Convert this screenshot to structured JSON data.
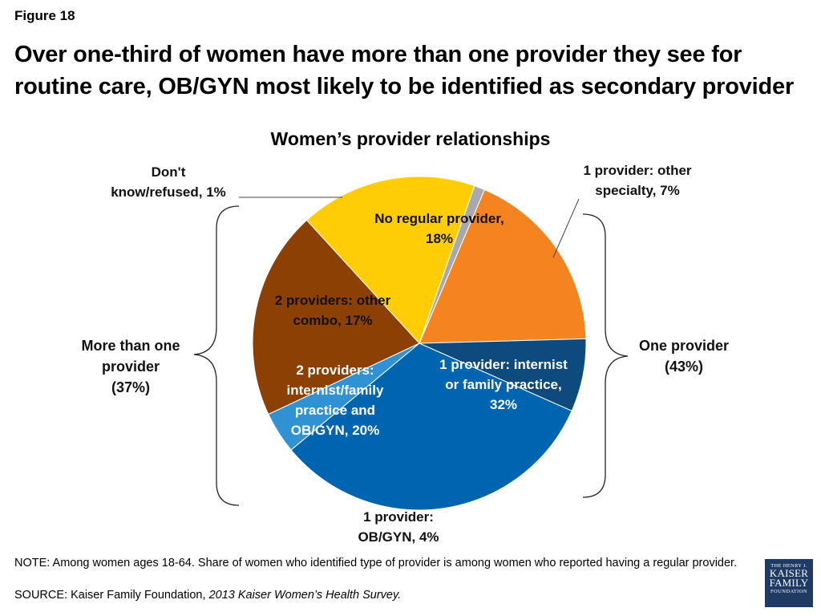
{
  "figure_label": "Figure 18",
  "headline": "Over one-third of women have more than one provider they see for routine care, OB/GYN most likely to be identified as secondary provider",
  "chart_data": {
    "type": "pie",
    "title": "Women’s provider relationships",
    "unit": "%",
    "slices": [
      {
        "label_lines": [
          "No regular provider,",
          "18%"
        ],
        "value": 18,
        "color": "#f5831f"
      },
      {
        "label_lines": [
          "1 provider: other",
          "specialty, 7%"
        ],
        "value": 7,
        "color": "#0e4a7e"
      },
      {
        "label_lines": [
          "1 provider: internist",
          "or family practice,",
          "32%"
        ],
        "value": 32,
        "color": "#0064b0"
      },
      {
        "label_lines": [
          "1 provider:",
          "OB/GYN, 4%"
        ],
        "value": 4,
        "color": "#3092d3"
      },
      {
        "label_lines": [
          "2 providers:",
          "internist/family",
          "practice and",
          "OB/GYN, 20%"
        ],
        "value": 20,
        "color": "#8c4003"
      },
      {
        "label_lines": [
          "2 providers: other",
          "combo, 17%"
        ],
        "value": 17,
        "color": "#ffcd05"
      },
      {
        "label_lines": [
          "Don't",
          "know/refused, 1%"
        ],
        "value": 1,
        "color": "#a7a9ac"
      }
    ],
    "groups": [
      {
        "label_lines": [
          "More than one",
          "provider",
          "(37%)"
        ],
        "value": 37,
        "side": "left"
      },
      {
        "label_lines": [
          "One provider",
          "(43%)"
        ],
        "value": 43,
        "side": "right"
      }
    ]
  },
  "note": "NOTE: Among women ages 18-64. Share of women who identified type of provider is among women who reported having a regular provider.",
  "source": {
    "prefix": "SOURCE: Kaiser Family Foundation, ",
    "title": "2013 Kaiser Women’s Health Survey."
  },
  "logo": {
    "line1": "THE HENRY J.",
    "line2": "KAISER",
    "line3": "FAMILY",
    "line4": "FOUNDATION"
  }
}
